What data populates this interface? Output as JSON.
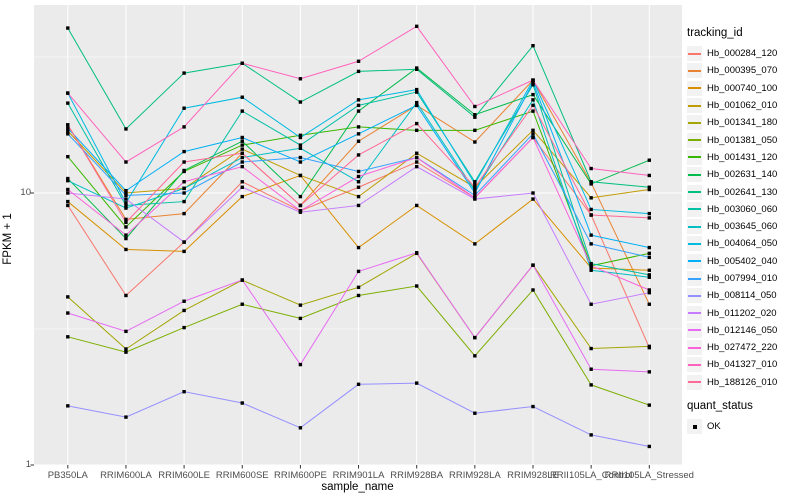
{
  "colors": {
    "panel_background": "#EBEBEB",
    "gridline": "#FFFFFF",
    "tick_label": "#4D4D4D",
    "axis_title": "#000000",
    "point_marker": "#000000",
    "legend_key_background": "#F2F2F2"
  },
  "legend": {
    "tracking_title": "tracking_id",
    "quant_title": "quant_status",
    "quant_items": [
      {
        "label": "OK",
        "marker": "black-square"
      }
    ]
  },
  "y_axis": {
    "title": "FPKM + 1",
    "tick_labels": [
      "10",
      "1"
    ]
  },
  "x_axis": {
    "title": "sample_name"
  },
  "chart_data": {
    "type": "line",
    "title": "",
    "xlabel": "sample_name",
    "ylabel": "FPKM + 1",
    "y_scale": "log10",
    "ylim": [
      1,
      49
    ],
    "y_major_ticks": [
      1,
      10
    ],
    "y_minor_ticks": [
      3.162,
      31.62
    ],
    "grid": true,
    "legend_position": "right",
    "marker": "black-square",
    "categories": [
      "PB350LA",
      "RRIM600LA",
      "RRIM600LE",
      "RRIM600SE",
      "RRIM600PE",
      "RRIM901LA",
      "RRIM928BA",
      "RRIM928LA",
      "RRIM928LE",
      "RRII105LA_Control",
      "RRII105LA_Stressed"
    ],
    "series": [
      {
        "name": "Hb_000284_120",
        "color": "#F8766D",
        "values": [
          9.0,
          4.2,
          6.6,
          11.0,
          8.6,
          10.5,
          13.0,
          9.6,
          16.0,
          8.3,
          2.7
        ]
      },
      {
        "name": "Hb_000395_070",
        "color": "#EA8331",
        "values": [
          17.8,
          8.0,
          8.4,
          14.0,
          9.0,
          15.5,
          21.0,
          15.4,
          26.0,
          10.9,
          3.9
        ]
      },
      {
        "name": "Hb_000740_100",
        "color": "#D89000",
        "values": [
          9.3,
          6.2,
          6.1,
          9.7,
          11.6,
          6.3,
          9.0,
          6.5,
          9.5,
          5.3,
          5.2
        ]
      },
      {
        "name": "Hb_001062_010",
        "color": "#C09B00",
        "values": [
          16.9,
          10.0,
          10.4,
          14.5,
          11.6,
          9.7,
          14.0,
          10.5,
          17.0,
          9.6,
          10.3
        ]
      },
      {
        "name": "Hb_001341_180",
        "color": "#A3A500",
        "values": [
          4.15,
          2.67,
          3.7,
          4.78,
          3.87,
          4.5,
          6.0,
          2.94,
          5.43,
          2.68,
          2.73
        ]
      },
      {
        "name": "Hb_001381_050",
        "color": "#7CAE00",
        "values": [
          2.96,
          2.6,
          3.2,
          3.9,
          3.46,
          4.2,
          4.55,
          2.52,
          4.4,
          1.97,
          1.66
        ]
      },
      {
        "name": "Hb_001431_120",
        "color": "#39B600",
        "values": [
          13.6,
          7.5,
          12.0,
          15.0,
          16.3,
          17.5,
          17.0,
          17.0,
          20.0,
          5.4,
          6.0
        ]
      },
      {
        "name": "Hb_002631_140",
        "color": "#00BB4E",
        "values": [
          11.3,
          6.8,
          12.1,
          15.5,
          9.7,
          20.0,
          28.8,
          19.4,
          23.0,
          10.8,
          13.2
        ]
      },
      {
        "name": "Hb_002641_130",
        "color": "#00BF7D",
        "values": [
          40.4,
          17.2,
          27.6,
          30.0,
          21.6,
          28.0,
          28.5,
          19.0,
          34.8,
          11.0,
          10.5
        ]
      },
      {
        "name": "Hb_003060_060",
        "color": "#00C1A3",
        "values": [
          21.4,
          9.0,
          9.3,
          20.0,
          15.0,
          21.0,
          23.5,
          11.0,
          25.0,
          5.5,
          5.0
        ]
      },
      {
        "name": "Hb_003645_060",
        "color": "#00BFC4",
        "values": [
          11.1,
          8.8,
          10.4,
          13.5,
          14.6,
          11.0,
          21.5,
          10.2,
          22.0,
          5.2,
          4.9
        ]
      },
      {
        "name": "Hb_004064_050",
        "color": "#00BAE0",
        "values": [
          23.3,
          9.2,
          20.5,
          22.5,
          16.0,
          22.0,
          24.0,
          10.8,
          26.0,
          8.7,
          8.4
        ]
      },
      {
        "name": "Hb_005402_040",
        "color": "#00B0F6",
        "values": [
          17.3,
          10.2,
          14.2,
          16.0,
          13.0,
          16.5,
          21.0,
          10.0,
          25.5,
          7.0,
          6.3
        ]
      },
      {
        "name": "Hb_007994_010",
        "color": "#35A2FF",
        "values": [
          16.5,
          9.8,
          10.0,
          13.0,
          13.5,
          12.0,
          13.5,
          9.8,
          16.5,
          6.5,
          5.8
        ]
      },
      {
        "name": "Hb_008114_050",
        "color": "#9590FF",
        "values": [
          1.65,
          1.5,
          1.86,
          1.69,
          1.37,
          1.98,
          2.0,
          1.55,
          1.64,
          1.29,
          1.17
        ]
      },
      {
        "name": "Hb_011202_020",
        "color": "#C77CFF",
        "values": [
          10.0,
          9.5,
          6.6,
          10.5,
          8.5,
          9.0,
          12.5,
          9.5,
          10.0,
          3.9,
          4.3
        ]
      },
      {
        "name": "Hb_012146_050",
        "color": "#E76BF3",
        "values": [
          3.62,
          3.1,
          4.0,
          4.79,
          2.34,
          5.15,
          6.03,
          2.94,
          5.43,
          2.25,
          2.2
        ]
      },
      {
        "name": "Hb_027472_220",
        "color": "#FA62DB",
        "values": [
          10.3,
          7.0,
          11.0,
          12.5,
          8.6,
          11.5,
          13.5,
          9.6,
          16.0,
          5.4,
          4.4
        ]
      },
      {
        "name": "Hb_041327_010",
        "color": "#FF62BC",
        "values": [
          23.3,
          13.0,
          17.5,
          30.0,
          26.3,
          30.5,
          41.0,
          20.8,
          26.0,
          12.3,
          11.6
        ]
      },
      {
        "name": "Hb_188126_010",
        "color": "#FF6A98",
        "values": [
          17.8,
          7.8,
          13.0,
          14.0,
          9.0,
          13.8,
          18.0,
          10.5,
          21.0,
          8.3,
          8.1
        ]
      }
    ]
  }
}
